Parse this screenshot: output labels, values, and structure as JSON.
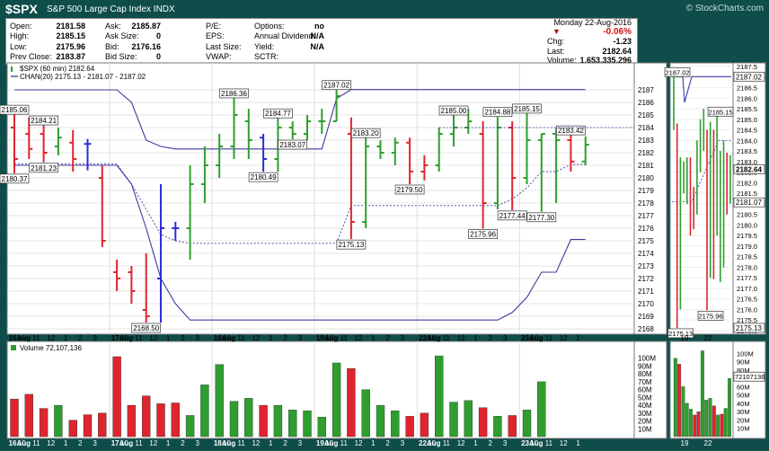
{
  "header": {
    "symbol": "$SPX",
    "name": "S&P 500 Large Cap Index",
    "exchange": "INDX",
    "watermark": "© StockCharts.com"
  },
  "quote": {
    "date": "Monday  22-Aug-2016",
    "pct_change": "-0.06%",
    "fields": [
      {
        "label": "Open:",
        "value": "2181.58"
      },
      {
        "label": "High:",
        "value": "2185.15"
      },
      {
        "label": "Low:",
        "value": "2175.96"
      },
      {
        "label": "Prev Close:",
        "value": "2183.87"
      },
      {
        "label": "Ask:",
        "value": "2185.87"
      },
      {
        "label": "Ask Size:",
        "value": "0"
      },
      {
        "label": "Bid:",
        "value": "2176.16"
      },
      {
        "label": "Bid Size:",
        "value": "0"
      },
      {
        "label": "P/E:",
        "value": ""
      },
      {
        "label": "EPS:",
        "value": ""
      },
      {
        "label": "Last Size:",
        "value": ""
      },
      {
        "label": "VWAP:",
        "value": ""
      },
      {
        "label": "Options:",
        "value": "no"
      },
      {
        "label": "Annual Dividend:",
        "value": "N/A"
      },
      {
        "label": "Yield:",
        "value": "N/A"
      },
      {
        "label": "SCTR:",
        "value": ""
      },
      {
        "label": "Chg:",
        "value": "-1.23"
      },
      {
        "label": "Last:",
        "value": "2182.64"
      },
      {
        "label": "Volume:",
        "value": "1,653,335,296"
      }
    ]
  },
  "colors": {
    "up": "#2e9e2e",
    "down": "#e0242e",
    "flat": "#2d2dd6",
    "channel": "#3b3b9e",
    "price_label_bg": "#fff"
  },
  "chart_data": [
    {
      "type": "ohlc",
      "legend_price": "$SPX (60 min) 2182.64",
      "legend_channel": "CHAN(20) 2175.13 - 2181.07 - 2187.02",
      "ylim": [
        2168,
        2188
      ],
      "y_ticks": [
        2168,
        2169,
        2170,
        2171,
        2172,
        2173,
        2174,
        2175,
        2176,
        2177,
        2178,
        2179,
        2180,
        2181,
        2182,
        2183,
        2184,
        2185,
        2186,
        2187
      ],
      "x_tick_labels": [
        "16Aug",
        "10",
        "11",
        "12",
        "1",
        "2",
        "3",
        "17Aug",
        "10",
        "11",
        "12",
        "1",
        "2",
        "3",
        "18Aug",
        "10",
        "11",
        "12",
        "1",
        "2",
        "3",
        "19Aug",
        "10",
        "11",
        "12",
        "1",
        "2",
        "3",
        "22Aug",
        "10",
        "11",
        "12",
        "1",
        "2",
        "3",
        "23Aug",
        "10",
        "11",
        "12",
        "1"
      ],
      "bars": [
        {
          "o": 2184.0,
          "h": 2185.06,
          "l": 2180.37,
          "c": 2181.5,
          "d": "down"
        },
        {
          "o": 2183.5,
          "h": 2184.8,
          "l": 2181.5,
          "c": 2182.3,
          "d": "down"
        },
        {
          "o": 2183.5,
          "h": 2184.21,
          "l": 2181.23,
          "c": 2182.0,
          "d": "down"
        },
        {
          "o": 2182.5,
          "h": 2184.0,
          "l": 2181.8,
          "c": 2183.2,
          "d": "up"
        },
        {
          "o": 2182.8,
          "h": 2183.8,
          "l": 2180.5,
          "c": 2181.5,
          "d": "down"
        },
        {
          "o": 2182.7,
          "h": 2183.1,
          "l": 2180.6,
          "c": 2182.7,
          "d": "flat"
        },
        {
          "o": 2180.0,
          "h": 2181.0,
          "l": 2174.5,
          "c": 2175.0,
          "d": "down"
        },
        {
          "o": 2172.5,
          "h": 2173.5,
          "l": 2171.0,
          "c": 2172.0,
          "d": "down"
        },
        {
          "o": 2172.5,
          "h": 2173.0,
          "l": 2170.0,
          "c": 2171.0,
          "d": "down"
        },
        {
          "o": 2169.5,
          "h": 2174.0,
          "l": 2168.5,
          "c": 2169.0,
          "d": "down"
        },
        {
          "o": 2172.0,
          "h": 2179.5,
          "l": 2168.5,
          "c": 2176.0,
          "d": "flat"
        },
        {
          "o": 2176.0,
          "h": 2176.5,
          "l": 2175.0,
          "c": 2176.0,
          "d": "flat"
        },
        {
          "o": 2176.0,
          "h": 2181.0,
          "l": 2173.5,
          "c": 2179.5,
          "d": "up"
        },
        {
          "o": 2179.5,
          "h": 2182.5,
          "l": 2178.0,
          "c": 2181.0,
          "d": "up"
        },
        {
          "o": 2181.0,
          "h": 2183.5,
          "l": 2180.0,
          "c": 2182.5,
          "d": "up"
        },
        {
          "o": 2182.5,
          "h": 2186.36,
          "l": 2181.5,
          "c": 2185.0,
          "d": "up"
        },
        {
          "o": 2184.5,
          "h": 2185.5,
          "l": 2181.5,
          "c": 2183.0,
          "d": "up"
        },
        {
          "o": 2183.2,
          "h": 2183.5,
          "l": 2180.49,
          "c": 2181.5,
          "d": "flat"
        },
        {
          "o": 2181.5,
          "h": 2184.77,
          "l": 2180.5,
          "c": 2184.0,
          "d": "up"
        },
        {
          "o": 2184.0,
          "h": 2184.5,
          "l": 2183.07,
          "c": 2183.5,
          "d": "up"
        },
        {
          "o": 2183.5,
          "h": 2185.0,
          "l": 2183.0,
          "c": 2184.5,
          "d": "up"
        },
        {
          "o": 2184.5,
          "h": 2185.5,
          "l": 2183.5,
          "c": 2184.5,
          "d": "up"
        },
        {
          "o": 2184.5,
          "h": 2187.02,
          "l": 2184.5,
          "c": 2186.5,
          "d": "up"
        },
        {
          "o": 2183.5,
          "h": 2184.8,
          "l": 2175.13,
          "c": 2176.5,
          "d": "down"
        },
        {
          "o": 2176.5,
          "h": 2183.2,
          "l": 2176.0,
          "c": 2182.5,
          "d": "up"
        },
        {
          "o": 2182.5,
          "h": 2183.0,
          "l": 2181.5,
          "c": 2182.0,
          "d": "up"
        },
        {
          "o": 2182.0,
          "h": 2183.2,
          "l": 2181.0,
          "c": 2182.8,
          "d": "up"
        },
        {
          "o": 2182.8,
          "h": 2183.2,
          "l": 2179.5,
          "c": 2180.5,
          "d": "down"
        },
        {
          "o": 2180.5,
          "h": 2181.8,
          "l": 2179.8,
          "c": 2181.0,
          "d": "down"
        },
        {
          "o": 2181.0,
          "h": 2184.0,
          "l": 2180.5,
          "c": 2183.5,
          "d": "up"
        },
        {
          "o": 2183.5,
          "h": 2185.0,
          "l": 2182.5,
          "c": 2184.0,
          "d": "up"
        },
        {
          "o": 2184.0,
          "h": 2185.5,
          "l": 2183.5,
          "c": 2184.5,
          "d": "up"
        },
        {
          "o": 2183.5,
          "h": 2184.5,
          "l": 2175.96,
          "c": 2178.0,
          "d": "down"
        },
        {
          "o": 2178.0,
          "h": 2184.88,
          "l": 2177.5,
          "c": 2184.0,
          "d": "up"
        },
        {
          "o": 2184.0,
          "h": 2184.5,
          "l": 2177.44,
          "c": 2180.0,
          "d": "down"
        },
        {
          "o": 2180.0,
          "h": 2185.15,
          "l": 2179.5,
          "c": 2183.0,
          "d": "up"
        },
        {
          "o": 2183.0,
          "h": 2183.5,
          "l": 2177.3,
          "c": 2183.5,
          "d": "up"
        },
        {
          "o": 2183.5,
          "h": 2184.0,
          "l": 2178.0,
          "c": 2183.0,
          "d": "up"
        },
        {
          "o": 2183.0,
          "h": 2183.42,
          "l": 2180.5,
          "c": 2181.3,
          "d": "down"
        },
        {
          "o": 2181.3,
          "h": 2183.3,
          "l": 2181.0,
          "c": 2182.64,
          "d": "up"
        }
      ],
      "price_labels": [
        {
          "i": 0,
          "v": "2185.06",
          "at": "h"
        },
        {
          "i": 0,
          "v": "2180.37",
          "at": "l"
        },
        {
          "i": 2,
          "v": "2184.21",
          "at": "h"
        },
        {
          "i": 2,
          "v": "2181.23",
          "at": "l"
        },
        {
          "i": 9,
          "v": "2168.50",
          "at": "l"
        },
        {
          "i": 15,
          "v": "2186.36",
          "at": "h"
        },
        {
          "i": 17,
          "v": "2180.49",
          "at": "l"
        },
        {
          "i": 18,
          "v": "2184.77",
          "at": "h"
        },
        {
          "i": 19,
          "v": "2183.07",
          "at": "l"
        },
        {
          "i": 22,
          "v": "2187.02",
          "at": "h"
        },
        {
          "i": 23,
          "v": "2175.13",
          "at": "l"
        },
        {
          "i": 24,
          "v": "2183.20",
          "at": "h"
        },
        {
          "i": 27,
          "v": "2179.50",
          "at": "l"
        },
        {
          "i": 30,
          "v": "2185.00",
          "at": "h"
        },
        {
          "i": 32,
          "v": "2175.96",
          "at": "l"
        },
        {
          "i": 33,
          "v": "2184.88",
          "at": "h"
        },
        {
          "i": 34,
          "v": "2177.44",
          "at": "l"
        },
        {
          "i": 35,
          "v": "2185.15",
          "at": "h"
        },
        {
          "i": 36,
          "v": "2177.30",
          "at": "l"
        },
        {
          "i": 38,
          "v": "2183.42",
          "at": "h"
        }
      ],
      "channel_upper": [
        2181,
        2181,
        2181,
        2181,
        2181,
        2181,
        2181,
        2181,
        2179.5,
        2176,
        2172,
        2170,
        2168.7,
        2168.7,
        2168.7,
        2168.7,
        2168.7,
        2168.7,
        2168.7,
        2168.7,
        2168.7,
        2168.7,
        2168.7,
        2168.7,
        2168.7,
        2168.7,
        2168.7,
        2168.7,
        2168.7,
        2168.7,
        2168.7,
        2168.7,
        2168.7,
        2168.7,
        2169.3,
        2170.5,
        2172.5,
        2172.5,
        2175.1,
        2175.1
      ],
      "channel_mid": [
        2181.1,
        2181.1,
        2181.1,
        2181.1,
        2181.1,
        2181.1,
        2181.1,
        2181.1,
        2179.5,
        2177.5,
        2175.5,
        2175,
        2174.8,
        2174.8,
        2174.8,
        2174.8,
        2174.8,
        2174.8,
        2174.8,
        2174.8,
        2174.8,
        2174.8,
        2174.8,
        2177.8,
        2177.8,
        2177.8,
        2177.8,
        2177.8,
        2177.8,
        2177.8,
        2177.8,
        2177.8,
        2177.8,
        2177.8,
        2178.3,
        2179.2,
        2180.5,
        2180.5,
        2181.07,
        2181.07
      ],
      "channel_lower": [
        2187,
        2187,
        2187,
        2187,
        2187,
        2187,
        2187,
        2187,
        2186,
        2183,
        2182.5,
        2182.3,
        2182.3,
        2182.3,
        2182.3,
        2182.3,
        2182.3,
        2182.3,
        2182.3,
        2182.3,
        2182.3,
        2182.3,
        2186.3,
        2187.02,
        2187.02,
        2187.02,
        2187.02,
        2187.02,
        2187.02,
        2187.02,
        2187.02,
        2187.02,
        2187.02,
        2187.02,
        2187.02,
        2187.02,
        2187.02,
        2187.02,
        2187.02,
        2187.02
      ]
    },
    {
      "type": "bar",
      "legend": "Volume 72,107,136",
      "ylim": [
        0,
        110000000
      ],
      "y_ticks": [
        "10M",
        "20M",
        "30M",
        "40M",
        "50M",
        "60M",
        "70M",
        "80M",
        "90M",
        "100M"
      ],
      "values": [
        48,
        54,
        36,
        40,
        21,
        28,
        30,
        102,
        40,
        52,
        42,
        43,
        27,
        66,
        92,
        45,
        49,
        40,
        40,
        34,
        33,
        25,
        94,
        87,
        60,
        40,
        33,
        26,
        30,
        103,
        44,
        46,
        37,
        26,
        27,
        34,
        70,
        0,
        0,
        0
      ],
      "scale": 1000000
    }
  ],
  "mini": {
    "y_ticks": [
      "2187.5",
      "2187.0",
      "2186.5",
      "2186.0",
      "2185.5",
      "2185.0",
      "2184.5",
      "2184.0",
      "2183.5",
      "2183.0",
      "2182.5",
      "2182.0",
      "2181.5",
      "2181.0",
      "2180.5",
      "2180.0",
      "2179.5",
      "2179.0",
      "2178.5",
      "2178.0",
      "2177.5",
      "2177.0",
      "2176.5",
      "2176.0",
      "2175.5",
      "2175.0"
    ],
    "labels": [
      "2187.02",
      "2185.15",
      "2175.13",
      "2175.96"
    ],
    "right_tags": [
      "2187.02",
      "2182.64",
      "2181.07",
      "2175.13"
    ],
    "vol_ticks": [
      "100M",
      "90M",
      "80M",
      "70M",
      "60M",
      "50M",
      "40M",
      "30M",
      "20M",
      "10M"
    ],
    "vol_tag": "72107136",
    "x_labels": [
      "19",
      "22"
    ]
  }
}
